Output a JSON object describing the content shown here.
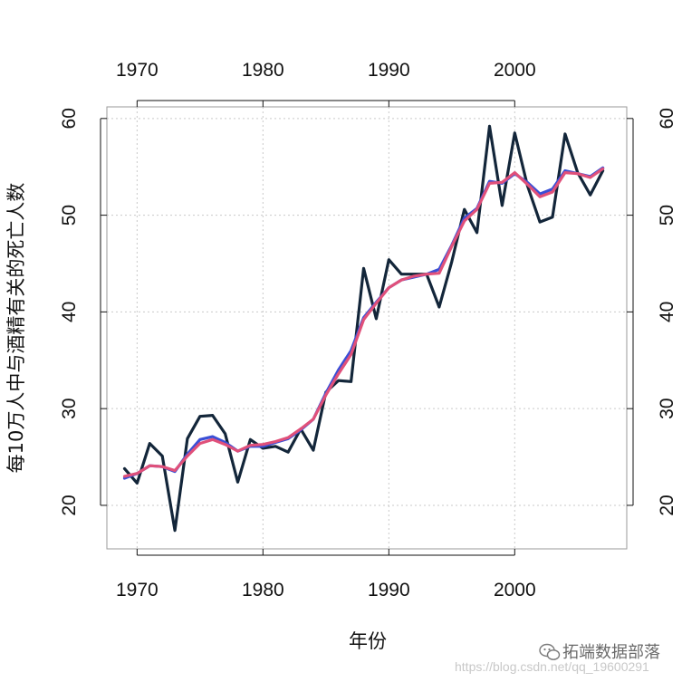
{
  "chart_data": {
    "type": "line",
    "xlabel": "年份",
    "ylabel": "每10万人中与酒精有关的死亡人数",
    "xlim": [
      1967.6,
      2008.9
    ],
    "ylim": [
      15.5,
      61.2
    ],
    "x_ticks": [
      1970,
      1980,
      1990,
      2000
    ],
    "y_ticks": [
      20,
      30,
      40,
      50,
      60
    ],
    "x_axis_sides": [
      "bottom",
      "top"
    ],
    "y_axis_sides": [
      "left",
      "right"
    ],
    "grid": true,
    "x": [
      1969,
      1970,
      1971,
      1972,
      1973,
      1974,
      1975,
      1976,
      1977,
      1978,
      1979,
      1980,
      1981,
      1982,
      1983,
      1984,
      1985,
      1986,
      1987,
      1988,
      1989,
      1990,
      1991,
      1992,
      1993,
      1994,
      1995,
      1996,
      1997,
      1998,
      1999,
      2000,
      2001,
      2002,
      2003,
      2004,
      2005,
      2006,
      2007
    ],
    "series": [
      {
        "color": "#13263a",
        "values": [
          23.8,
          22.3,
          26.4,
          25.1,
          17.4,
          26.9,
          29.2,
          29.3,
          27.4,
          22.4,
          26.8,
          25.9,
          26.1,
          25.5,
          27.9,
          25.7,
          31.7,
          32.9,
          32.8,
          44.5,
          39.3,
          45.4,
          43.9,
          43.9,
          43.9,
          40.5,
          45.2,
          50.6,
          48.2,
          59.2,
          51.0,
          58.5,
          53.1,
          49.3,
          49.8,
          58.4,
          54.4,
          52.1,
          54.6
        ]
      },
      {
        "color": "#3a4fd6",
        "values": [
          22.8,
          23.3,
          24.1,
          24.0,
          23.5,
          25.3,
          26.8,
          27.1,
          26.5,
          25.6,
          26.1,
          26.1,
          26.5,
          26.9,
          27.8,
          28.9,
          31.6,
          34.0,
          36.0,
          39.4,
          41.0,
          42.5,
          43.3,
          43.6,
          43.9,
          44.4,
          46.9,
          49.7,
          50.7,
          53.5,
          53.3,
          54.3,
          53.4,
          52.2,
          52.7,
          54.6,
          54.3,
          54.0,
          54.9
        ]
      },
      {
        "color": "#e0507a",
        "values": [
          23.0,
          23.3,
          24.1,
          24.0,
          23.6,
          25.1,
          26.4,
          26.8,
          26.3,
          25.6,
          26.2,
          26.3,
          26.6,
          27.0,
          27.9,
          28.9,
          31.4,
          33.6,
          35.6,
          39.2,
          40.9,
          42.5,
          43.3,
          43.7,
          43.9,
          44.0,
          46.8,
          49.4,
          50.6,
          53.3,
          53.4,
          54.4,
          53.2,
          51.9,
          52.4,
          54.4,
          54.3,
          53.9,
          54.8
        ]
      }
    ]
  },
  "watermark": {
    "name": "拓端数据部落",
    "url": "https://blog.csdn.net/qq_19600291",
    "icon": "wechat-icon"
  }
}
